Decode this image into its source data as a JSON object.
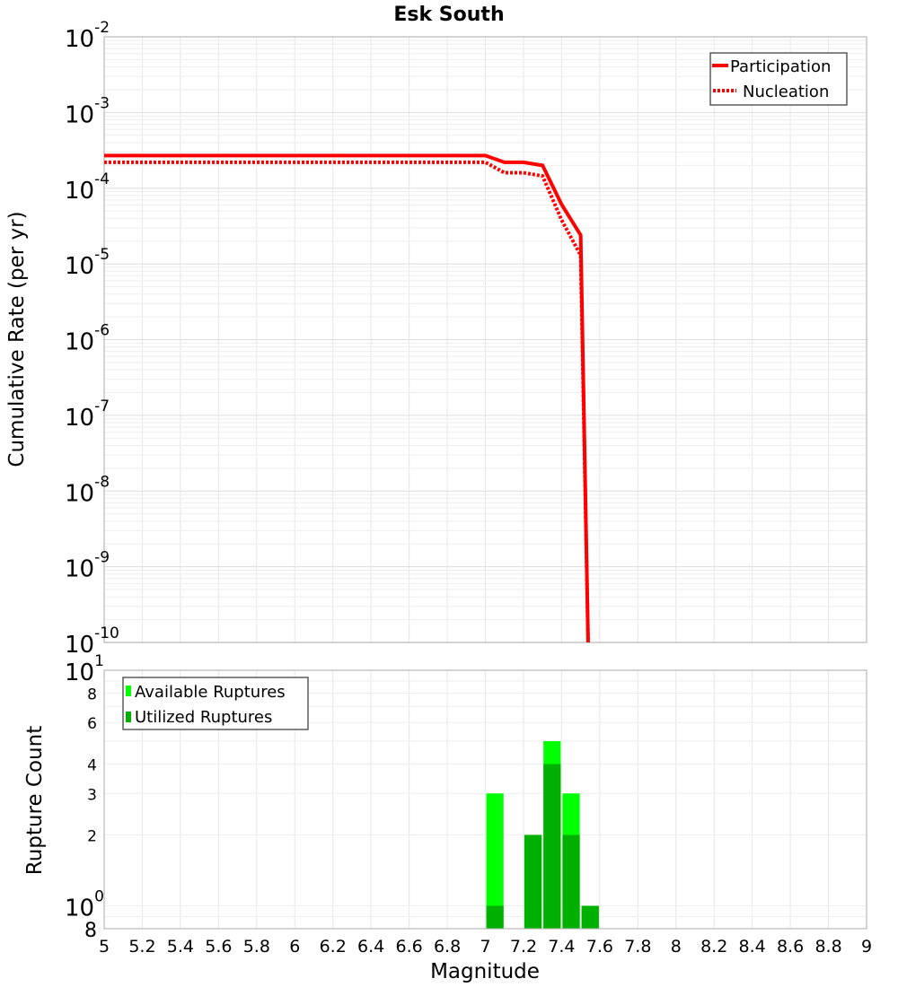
{
  "title": "Esk South",
  "chart_data": [
    {
      "type": "line",
      "title": "Esk South",
      "xlabel": "",
      "ylabel": "Cumulative Rate (per yr)",
      "yscale": "log",
      "xlim": [
        5,
        9
      ],
      "ylim": [
        1e-10,
        0.01
      ],
      "grid": true,
      "legend_position": "top-right",
      "y_ticks": [
        "10^-2",
        "10^-3",
        "10^-4",
        "10^-5",
        "10^-6",
        "10^-7",
        "10^-8",
        "10^-9",
        "10^-10"
      ],
      "series": [
        {
          "name": "Participation",
          "style": "solid",
          "color": "#ff0000",
          "x": [
            5.0,
            7.0,
            7.1,
            7.2,
            7.3,
            7.4,
            7.5,
            7.54
          ],
          "y": [
            0.00027,
            0.00027,
            0.00022,
            0.00022,
            0.0002,
            6.1e-05,
            2.4e-05,
            1e-10
          ]
        },
        {
          "name": "Nucleation",
          "style": "dotted",
          "color": "#ff0000",
          "x": [
            5.0,
            7.0,
            7.1,
            7.2,
            7.3,
            7.4,
            7.5,
            7.54
          ],
          "y": [
            0.00022,
            0.00022,
            0.00016,
            0.00016,
            0.000145,
            3.8e-05,
            1.3e-05,
            1e-10
          ]
        }
      ]
    },
    {
      "type": "bar",
      "title": "",
      "xlabel": "Magnitude",
      "ylabel": "Rupture Count",
      "yscale": "log",
      "xlim": [
        5,
        9
      ],
      "ylim": [
        0.8,
        10
      ],
      "grid": true,
      "legend_position": "top-left",
      "x_ticks": [
        "5",
        "5.2",
        "5.4",
        "5.6",
        "5.8",
        "6",
        "6.2",
        "6.4",
        "6.6",
        "6.8",
        "7",
        "7.2",
        "7.4",
        "7.6",
        "7.8",
        "8",
        "8.2",
        "8.4",
        "8.6",
        "8.8",
        "9"
      ],
      "y_ticks": [
        "8",
        "10^0",
        "2",
        "3",
        "4",
        "6",
        "8",
        "10^1"
      ],
      "categories": [
        7.05,
        7.25,
        7.35,
        7.45,
        7.55
      ],
      "series": [
        {
          "name": "Available Ruptures",
          "color": "#00ff00",
          "values": [
            3,
            2,
            5,
            3,
            1
          ]
        },
        {
          "name": "Utilized Ruptures",
          "color": "#00b000",
          "values": [
            1,
            2,
            4,
            2,
            1
          ]
        }
      ]
    }
  ],
  "top": {
    "ylabel": "Cumulative Rate (per yr)",
    "legend": [
      {
        "label": "Participation",
        "style": "solid"
      },
      {
        "label": "Nucleation",
        "style": "dotted"
      }
    ],
    "yticks": [
      {
        "base": "10",
        "exp": "-2"
      },
      {
        "base": "10",
        "exp": "-3"
      },
      {
        "base": "10",
        "exp": "-4"
      },
      {
        "base": "10",
        "exp": "-5"
      },
      {
        "base": "10",
        "exp": "-6"
      },
      {
        "base": "10",
        "exp": "-7"
      },
      {
        "base": "10",
        "exp": "-8"
      },
      {
        "base": "10",
        "exp": "-9"
      },
      {
        "base": "10",
        "exp": "-10"
      }
    ]
  },
  "bottom": {
    "ylabel": "Rupture Count",
    "xlabel": "Magnitude",
    "legend": [
      {
        "label": "Available Ruptures",
        "color": "#00ff00"
      },
      {
        "label": "Utilized Ruptures",
        "color": "#00b000"
      }
    ],
    "xticks": [
      "5",
      "5.2",
      "5.4",
      "5.6",
      "5.8",
      "6",
      "6.2",
      "6.4",
      "6.6",
      "6.8",
      "7",
      "7.2",
      "7.4",
      "7.6",
      "7.8",
      "8",
      "8.2",
      "8.4",
      "8.6",
      "8.8",
      "9"
    ],
    "ytick_minor": [
      "8",
      "6",
      "4",
      "3",
      "2",
      "8"
    ],
    "ytick_major": [
      {
        "base": "10",
        "exp": "1"
      },
      {
        "base": "10",
        "exp": "0"
      }
    ]
  }
}
